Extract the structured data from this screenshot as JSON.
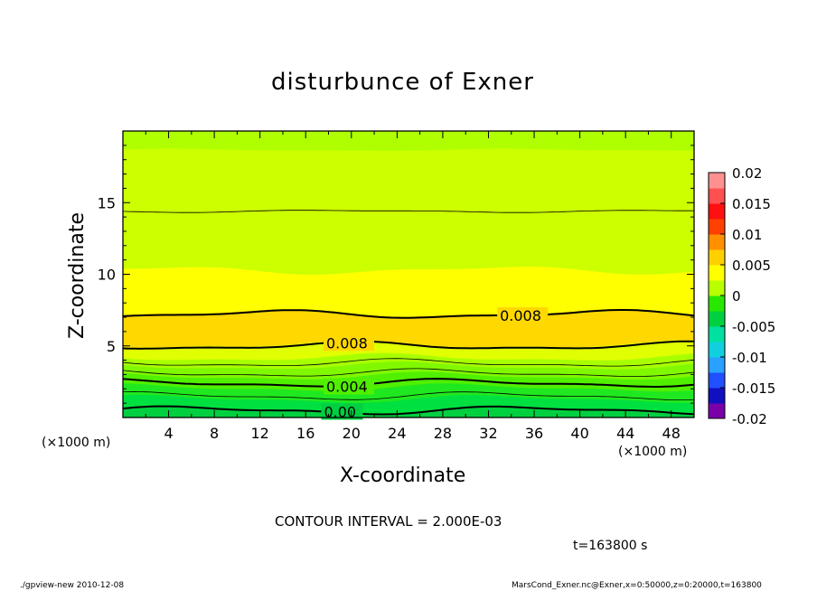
{
  "chart_data": {
    "type": "heatmap",
    "title": "disturbunce of Exner",
    "xlabel": "X-coordinate",
    "ylabel": "Z-coordinate",
    "x_unit_left": "(×1000 m)",
    "x_unit_right": "(×1000 m)",
    "xlim": [
      0,
      50
    ],
    "ylim": [
      0,
      20
    ],
    "x_ticks": [
      4,
      8,
      12,
      16,
      20,
      24,
      28,
      32,
      36,
      40,
      44,
      48
    ],
    "y_ticks": [
      5,
      10,
      15
    ],
    "colorbar": {
      "ticks": [
        "0.02",
        "0.015",
        "0.01",
        "0.005",
        "0",
        "-0.005",
        "-0.01",
        "-0.015",
        "-0.02"
      ],
      "range": [
        -0.02,
        0.02
      ],
      "level_colors": [
        "#7a00a8",
        "#1010c0",
        "#2050ff",
        "#2aa0ff",
        "#10d0e0",
        "#00e0a0",
        "#00d040",
        "#28e800",
        "#b8ff00",
        "#ffff00",
        "#ffd000",
        "#ff9000",
        "#ff4000",
        "#ff1010",
        "#ff5050",
        "#ff9090"
      ]
    },
    "bands": [
      {
        "z_bottom": 0.0,
        "z_top": 0.6,
        "color": "#00d040"
      },
      {
        "z_bottom": 0.6,
        "z_top": 1.3,
        "color": "#00e040"
      },
      {
        "z_bottom": 1.3,
        "z_top": 2.1,
        "color": "#20e820"
      },
      {
        "z_bottom": 2.1,
        "z_top": 2.9,
        "color": "#50f000"
      },
      {
        "z_bottom": 2.9,
        "z_top": 3.6,
        "color": "#80f800"
      },
      {
        "z_bottom": 3.6,
        "z_top": 4.2,
        "color": "#a8ff00"
      },
      {
        "z_bottom": 4.2,
        "z_top": 5.1,
        "color": "#e0ff00"
      },
      {
        "z_bottom": 5.1,
        "z_top": 7.3,
        "color": "#ffd800"
      },
      {
        "z_bottom": 7.3,
        "z_top": 10.3,
        "color": "#ffff00"
      },
      {
        "z_bottom": 10.3,
        "z_top": 18.7,
        "color": "#ccff00"
      },
      {
        "z_bottom": 18.7,
        "z_top": 20.0,
        "color": "#b0ff00"
      }
    ],
    "contours": [
      {
        "z": 0.5,
        "width": 2,
        "label": "0.00",
        "label_x": 17.6
      },
      {
        "z": 1.5,
        "width": 0.8,
        "label": "",
        "label_x": null
      },
      {
        "z": 2.4,
        "width": 2,
        "label": "0.004",
        "label_x": 17.8
      },
      {
        "z": 3.1,
        "width": 0.8,
        "label": "",
        "label_x": null
      },
      {
        "z": 3.8,
        "width": 0.8,
        "label": "",
        "label_x": null
      },
      {
        "z": 5.0,
        "width": 2,
        "label": "0.008",
        "label_x": 17.8
      },
      {
        "z": 7.2,
        "width": 2,
        "label": "0.008",
        "label_x": 33.0
      },
      {
        "z": 14.4,
        "width": 0.8,
        "label": "",
        "label_x": null
      }
    ],
    "contour_interval": "CONTOUR INTERVAL = 2.000E-03",
    "time": "t=163800 s"
  },
  "footer": {
    "left": "./gpview-new  2010-12-08",
    "right": "MarsCond_Exner.nc@Exner,x=0:50000,z=0:20000,t=163800"
  },
  "colors": {
    "contour": "#000000",
    "frame": "#000000"
  }
}
